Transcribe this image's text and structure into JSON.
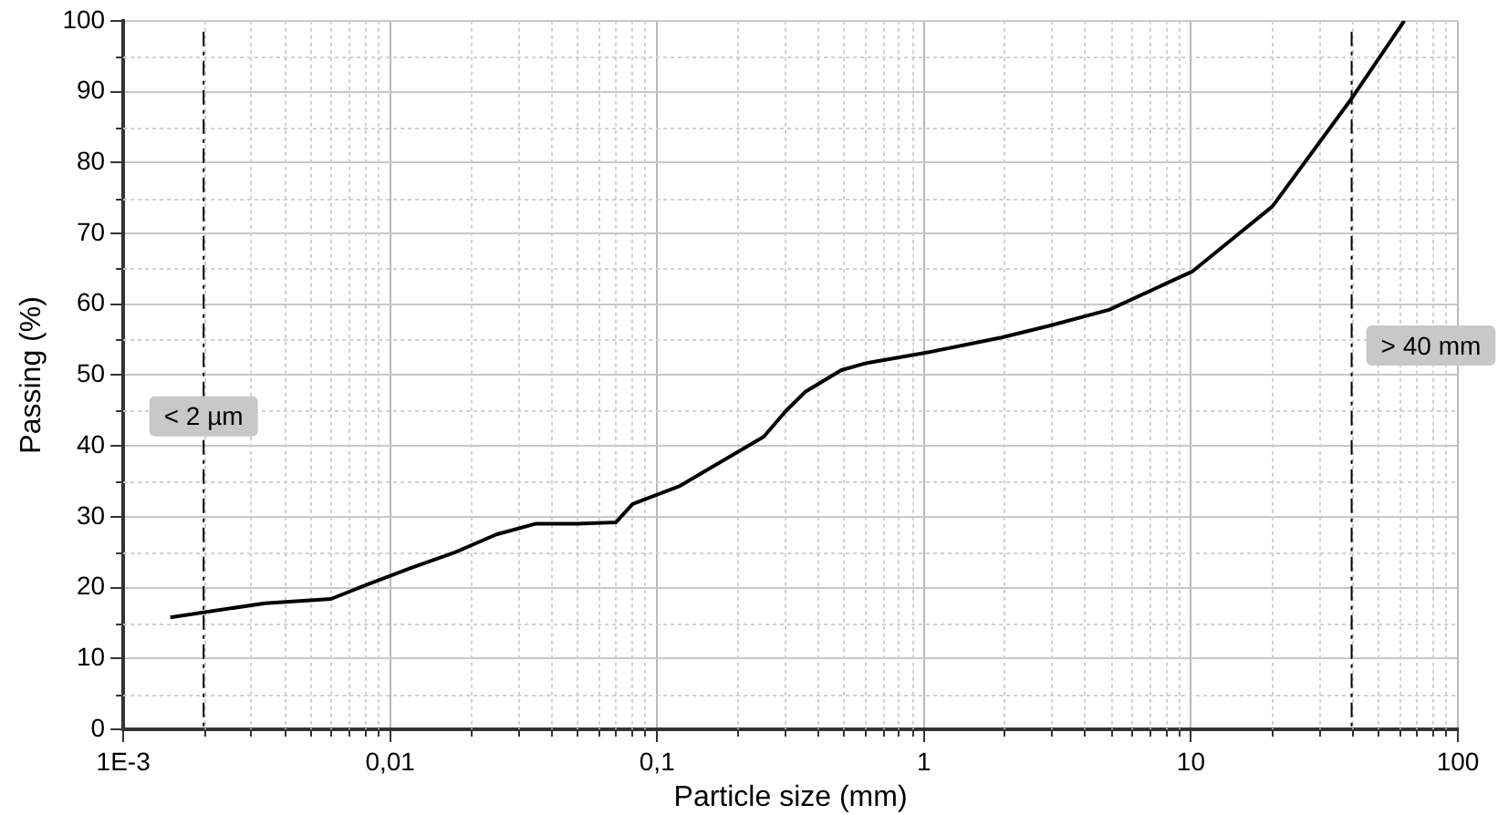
{
  "chart_data": {
    "type": "line",
    "xlabel": "Particle size (mm)",
    "ylabel": "Passing (%)",
    "log": "x",
    "grid": true,
    "legend": false,
    "marker": "none",
    "line_style": "solid",
    "xlim": [
      0.001,
      100
    ],
    "xticks": [
      {
        "value": 0.001,
        "label": "1E-3"
      },
      {
        "value": 0.01,
        "label": "0,01"
      },
      {
        "value": 0.1,
        "label": "0,1"
      },
      1,
      10,
      100
    ],
    "ylim": [
      0,
      100
    ],
    "yticks": [
      0,
      10,
      20,
      30,
      40,
      50,
      60,
      70,
      80,
      90,
      100
    ],
    "series": [
      {
        "color": "#000000",
        "x": [
          0.0015,
          0.0034,
          0.006,
          0.0083,
          0.012,
          0.0173,
          0.025,
          0.035,
          0.05,
          0.07,
          0.081,
          0.121,
          0.251,
          0.305,
          0.358,
          0.49,
          0.61,
          1.0,
          1.95,
          2.98,
          4.93,
          10.1,
          20.2,
          40.3,
          63
        ],
        "values": [
          15.8,
          17.8,
          18.4,
          20.5,
          22.8,
          24.9,
          27.5,
          29.0,
          29.0,
          29.2,
          31.8,
          34.3,
          41.3,
          45.0,
          47.6,
          50.7,
          51.7,
          53.1,
          55.3,
          57.0,
          59.2,
          64.6,
          73.8,
          89.2,
          100
        ]
      }
    ],
    "ref_lines": [
      {
        "axis": "x",
        "value": 0.002,
        "label": "< 2 µm",
        "color": "#000000",
        "line_style": "dashdot"
      },
      {
        "axis": "x",
        "value": 40,
        "label": "> 40 mm",
        "color": "#000000",
        "line_style": "dashdot"
      }
    ]
  }
}
